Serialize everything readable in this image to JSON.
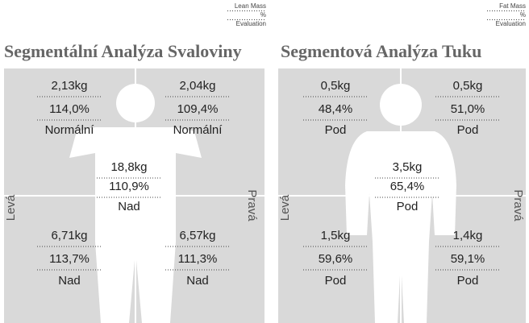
{
  "panels": [
    {
      "legend": [
        "Lean Mass",
        "%",
        "Evaluation"
      ],
      "title": "Segmentální Analýza Svaloviny",
      "left_label": "Levá",
      "right_label": "Pravá",
      "segments": [
        {
          "mass": "2,13kg",
          "percent": "114,0%",
          "evaluation": "Normální"
        },
        {
          "mass": "2,04kg",
          "percent": "109,4%",
          "evaluation": "Normální"
        },
        {
          "mass": "18,8kg",
          "percent": "110,9%",
          "evaluation": "Nad"
        },
        {
          "mass": "6,71kg",
          "percent": "113,7%",
          "evaluation": "Nad"
        },
        {
          "mass": "6,57kg",
          "percent": "111,3%",
          "evaluation": "Nad"
        }
      ]
    },
    {
      "legend": [
        "Fat Mass",
        "%",
        "Evaluation"
      ],
      "title": "Segmentová Analýza Tuku",
      "left_label": "Levá",
      "right_label": "Pravá",
      "segments": [
        {
          "mass": "0,5kg",
          "percent": "48,4%",
          "evaluation": "Pod"
        },
        {
          "mass": "0,5kg",
          "percent": "51,0%",
          "evaluation": "Pod"
        },
        {
          "mass": "3,5kg",
          "percent": "65,4%",
          "evaluation": "Pod"
        },
        {
          "mass": "1,5kg",
          "percent": "59,6%",
          "evaluation": "Pod"
        },
        {
          "mass": "1,4kg",
          "percent": "59,1%",
          "evaluation": "Pod"
        }
      ]
    }
  ]
}
